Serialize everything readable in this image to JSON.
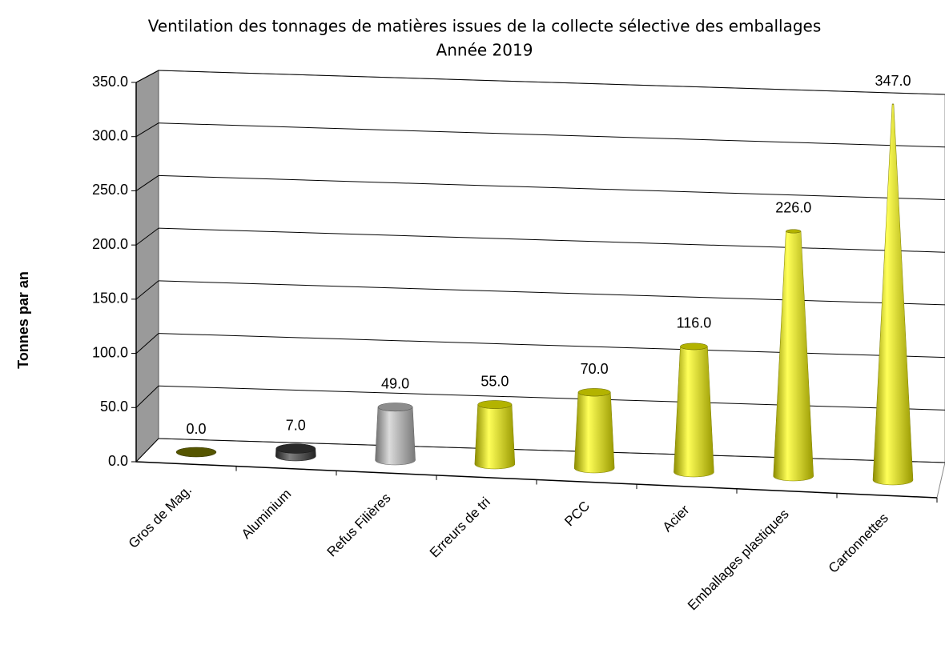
{
  "chart_data": {
    "type": "cone3d",
    "title": "Ventilation des tonnages de matières issues de la collecte sélective des emballages",
    "subtitle": "Année 2019",
    "y_label": "Tonnes par an",
    "categories": [
      "Gros de Mag.",
      "Aluminium",
      "Refus Filières",
      "Erreurs de tri",
      "PCC",
      "Acier",
      "Emballages plastiques",
      "Cartonnettes"
    ],
    "values": [
      0,
      7,
      49,
      55,
      70,
      116,
      226,
      347
    ],
    "value_labels": [
      "0.0",
      "7.0",
      "49.0",
      "55.0",
      "70.0",
      "116.0",
      "226.0",
      "347.0"
    ],
    "colors": [
      "#7a7a00",
      "#3a3a3a",
      "#c8c8c8",
      "#ffff00",
      "#ffff00",
      "#ffff00",
      "#ffff00",
      "#ffff00"
    ],
    "ylim": [
      0,
      350
    ],
    "yticks": [
      {
        "value": 0,
        "label": "0.0"
      },
      {
        "value": 50,
        "label": "50.0"
      },
      {
        "value": 100,
        "label": "100.0"
      },
      {
        "value": 150,
        "label": "150.0"
      },
      {
        "value": 200,
        "label": "200.0"
      },
      {
        "value": 250,
        "label": "250.0"
      },
      {
        "value": 300,
        "label": "300.0"
      },
      {
        "value": 350,
        "label": "350.0"
      }
    ],
    "grid": true
  }
}
